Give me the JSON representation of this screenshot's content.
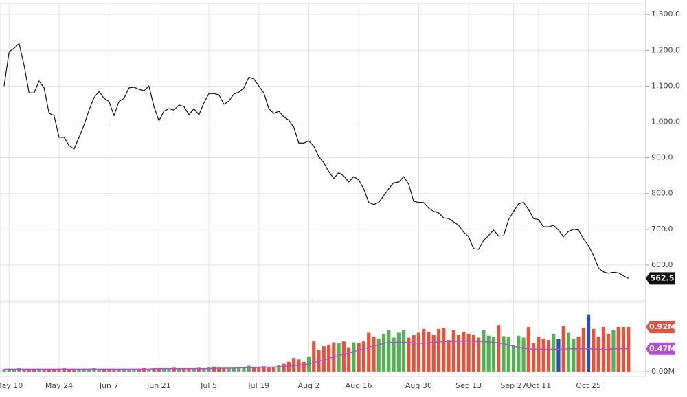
{
  "chart_data": [
    {
      "type": "line",
      "color": "#111111",
      "values": [
        1100,
        1196,
        1206,
        1219,
        1158,
        1081,
        1081,
        1114,
        1095,
        1024,
        1018,
        957,
        957,
        934,
        924,
        957,
        991,
        1033,
        1068,
        1085,
        1066,
        1057,
        1018,
        1057,
        1066,
        1095,
        1097,
        1091,
        1087,
        1100,
        1043,
        1003,
        1030,
        1037,
        1033,
        1047,
        1043,
        1020,
        1037,
        1020,
        1053,
        1079,
        1079,
        1076,
        1049,
        1058,
        1078,
        1083,
        1095,
        1125,
        1120,
        1100,
        1081,
        1037,
        1024,
        1030,
        1014,
        1005,
        985,
        941,
        941,
        947,
        932,
        903,
        886,
        861,
        842,
        858,
        849,
        832,
        847,
        838,
        813,
        775,
        769,
        775,
        794,
        813,
        830,
        832,
        847,
        826,
        778,
        775,
        775,
        759,
        750,
        746,
        732,
        730,
        721,
        711,
        692,
        679,
        646,
        644,
        669,
        682,
        698,
        681,
        682,
        727,
        750,
        771,
        775,
        755,
        730,
        727,
        707,
        707,
        711,
        698,
        679,
        694,
        700,
        698,
        673,
        654,
        627,
        592,
        581,
        577,
        580,
        578,
        570,
        562.5
      ],
      "ylim": [
        500,
        1331
      ],
      "yticks": [
        {
          "value": 600,
          "label": "600.0"
        },
        {
          "value": 700,
          "label": "700.0"
        },
        {
          "value": 800,
          "label": "800.0"
        },
        {
          "value": 900,
          "label": "900.0"
        },
        {
          "value": 1000,
          "label": "1,000.0"
        },
        {
          "value": 1100,
          "label": "1,100.0"
        },
        {
          "value": 1200,
          "label": "1,200.0"
        },
        {
          "value": 1300,
          "label": "1,300.0"
        }
      ],
      "grid": true
    },
    {
      "type": "bar",
      "categories": [
        null,
        "May 10",
        null,
        null,
        null,
        null,
        null,
        null,
        null,
        null,
        null,
        "May 24",
        null,
        null,
        null,
        null,
        null,
        null,
        null,
        null,
        null,
        "Jun 7",
        null,
        null,
        null,
        null,
        null,
        null,
        null,
        null,
        null,
        "Jun 21",
        null,
        null,
        null,
        null,
        null,
        null,
        null,
        null,
        null,
        "Jul 5",
        null,
        null,
        null,
        null,
        null,
        null,
        null,
        null,
        null,
        "Jul 19",
        null,
        null,
        null,
        null,
        null,
        null,
        null,
        null,
        null,
        "Aug 2",
        null,
        null,
        null,
        null,
        null,
        null,
        null,
        null,
        null,
        "Aug 16",
        null,
        null,
        null,
        null,
        null,
        null,
        null,
        null,
        null,
        null,
        null,
        "Aug 30",
        null,
        null,
        null,
        null,
        null,
        null,
        null,
        null,
        null,
        "Sep 13",
        null,
        null,
        null,
        null,
        null,
        null,
        null,
        null,
        "Sep 27",
        null,
        null,
        null,
        null,
        "Oct 11",
        null,
        null,
        null,
        null,
        null,
        null,
        null,
        null,
        null,
        "Oct 25",
        null,
        null,
        null,
        null,
        null,
        null,
        null,
        null
      ],
      "series": [
        {
          "name": "Volume",
          "last_value_label": "0.92M",
          "color": "#e5533d",
          "colors": [
            "#52b352",
            "#52b352",
            "#52b352",
            "#52b352",
            "#e5533d",
            "#e5533d",
            "#e5533d",
            "#52b352",
            "#e5533d",
            "#e5533d",
            "#e5533d",
            "#e5533d",
            "#e5533d",
            "#e5533d",
            "#e5533d",
            "#52b352",
            "#52b352",
            "#52b352",
            "#52b352",
            "#52b352",
            "#e5533d",
            "#e5533d",
            "#e5533d",
            "#52b352",
            "#52b352",
            "#52b352",
            "#52b352",
            "#e5533d",
            "#e5533d",
            "#52b352",
            "#e5533d",
            "#e5533d",
            "#52b352",
            "#52b352",
            "#e5533d",
            "#52b352",
            "#e5533d",
            "#e5533d",
            "#52b352",
            "#e5533d",
            "#52b352",
            "#52b352",
            "#e5533d",
            "#e5533d",
            "#e5533d",
            "#52b352",
            "#52b352",
            "#52b352",
            "#52b352",
            "#52b352",
            "#e5533d",
            "#e5533d",
            "#e5533d",
            "#e5533d",
            "#e5533d",
            "#52b352",
            "#e5533d",
            "#e5533d",
            "#e5533d",
            "#e5533d",
            "#e5533d",
            "#52b352",
            "#e5533d",
            "#e5533d",
            "#e5533d",
            "#e5533d",
            "#e5533d",
            "#52b352",
            "#e5533d",
            "#e5533d",
            "#52b352",
            "#e5533d",
            "#e5533d",
            "#e5533d",
            "#e5533d",
            "#52b352",
            "#52b352",
            "#52b352",
            "#52b352",
            "#52b352",
            "#52b352",
            "#e5533d",
            "#e5533d",
            "#e5533d",
            "#e5533d",
            "#e5533d",
            "#e5533d",
            "#e5533d",
            "#e5533d",
            "#e5533d",
            "#e5533d",
            "#e5533d",
            "#e5533d",
            "#e5533d",
            "#e5533d",
            "#e5533d",
            "#52b352",
            "#52b352",
            "#52b352",
            "#e5533d",
            "#52b352",
            "#52b352",
            "#52b352",
            "#52b352",
            "#52b352",
            "#e5533d",
            "#e5533d",
            "#e5533d",
            "#e5533d",
            "#e5533d",
            "#52b352",
            "#2f4fb5",
            "#e5533d",
            "#52b352",
            "#52b352",
            "#e5533d",
            "#e5533d",
            "#2f4fb5",
            "#e5533d",
            "#e5533d",
            "#e5533d",
            "#e5533d",
            "#52b352",
            "#e5533d",
            "#e5533d",
            "#e5533d"
          ],
          "values": [
            0.05,
            0.06,
            0.05,
            0.07,
            0.05,
            0.04,
            0.05,
            0.06,
            0.05,
            0.05,
            0.04,
            0.06,
            0.07,
            0.05,
            0.04,
            0.05,
            0.06,
            0.05,
            0.07,
            0.05,
            0.06,
            0.05,
            0.04,
            0.05,
            0.06,
            0.05,
            0.05,
            0.06,
            0.07,
            0.05,
            0.06,
            0.07,
            0.05,
            0.06,
            0.08,
            0.06,
            0.07,
            0.05,
            0.06,
            0.08,
            0.07,
            0.09,
            0.1,
            0.08,
            0.07,
            0.06,
            0.08,
            0.1,
            0.09,
            0.12,
            0.1,
            0.09,
            0.11,
            0.08,
            0.1,
            0.13,
            0.16,
            0.2,
            0.28,
            0.25,
            0.2,
            0.3,
            0.62,
            0.45,
            0.52,
            0.55,
            0.6,
            0.58,
            0.62,
            0.5,
            0.6,
            0.58,
            0.62,
            0.8,
            0.72,
            0.68,
            0.78,
            0.85,
            0.7,
            0.8,
            0.85,
            0.7,
            0.75,
            0.8,
            0.88,
            0.82,
            0.75,
            0.88,
            0.9,
            0.65,
            0.85,
            0.75,
            0.82,
            0.78,
            0.75,
            0.7,
            0.85,
            0.74,
            0.72,
            0.96,
            0.73,
            0.72,
            0.55,
            0.74,
            0.7,
            0.92,
            0.58,
            0.72,
            0.68,
            0.65,
            0.78,
            0.68,
            0.94,
            0.8,
            0.68,
            0.72,
            0.9,
            1.18,
            0.88,
            0.72,
            0.92,
            0.78,
            0.85,
            0.92,
            0.92,
            0.92
          ]
        },
        {
          "name": "Volume MA",
          "type": "line",
          "last_value_label": "0.47M",
          "color": "#b04fd6",
          "values": [
            0.05,
            0.05,
            0.05,
            0.05,
            0.05,
            0.05,
            0.05,
            0.05,
            0.05,
            0.05,
            0.05,
            0.05,
            0.05,
            0.05,
            0.05,
            0.05,
            0.05,
            0.05,
            0.05,
            0.05,
            0.05,
            0.05,
            0.05,
            0.05,
            0.05,
            0.05,
            0.05,
            0.05,
            0.05,
            0.05,
            0.06,
            0.06,
            0.06,
            0.06,
            0.06,
            0.06,
            0.06,
            0.06,
            0.06,
            0.06,
            0.06,
            0.06,
            0.07,
            0.07,
            0.07,
            0.07,
            0.07,
            0.08,
            0.08,
            0.08,
            0.08,
            0.09,
            0.09,
            0.09,
            0.09,
            0.1,
            0.1,
            0.11,
            0.12,
            0.13,
            0.14,
            0.16,
            0.19,
            0.21,
            0.24,
            0.27,
            0.3,
            0.33,
            0.36,
            0.38,
            0.41,
            0.44,
            0.47,
            0.5,
            0.53,
            0.55,
            0.58,
            0.6,
            0.6,
            0.6,
            0.6,
            0.6,
            0.59,
            0.58,
            0.58,
            0.59,
            0.6,
            0.61,
            0.62,
            0.62,
            0.62,
            0.62,
            0.63,
            0.63,
            0.62,
            0.62,
            0.62,
            0.61,
            0.6,
            0.59,
            0.57,
            0.55,
            0.52,
            0.5,
            0.48,
            0.47,
            0.46,
            0.46,
            0.46,
            0.46,
            0.46,
            0.46,
            0.46,
            0.47,
            0.47,
            0.47,
            0.47,
            0.47,
            0.47,
            0.46,
            0.46,
            0.46,
            0.47,
            0.47,
            0.47,
            0.47
          ]
        }
      ],
      "ylim": [
        -0.1,
        1.43
      ],
      "yticks": [
        {
          "value": 0,
          "label": "0.00M"
        }
      ],
      "grid": true
    }
  ]
}
